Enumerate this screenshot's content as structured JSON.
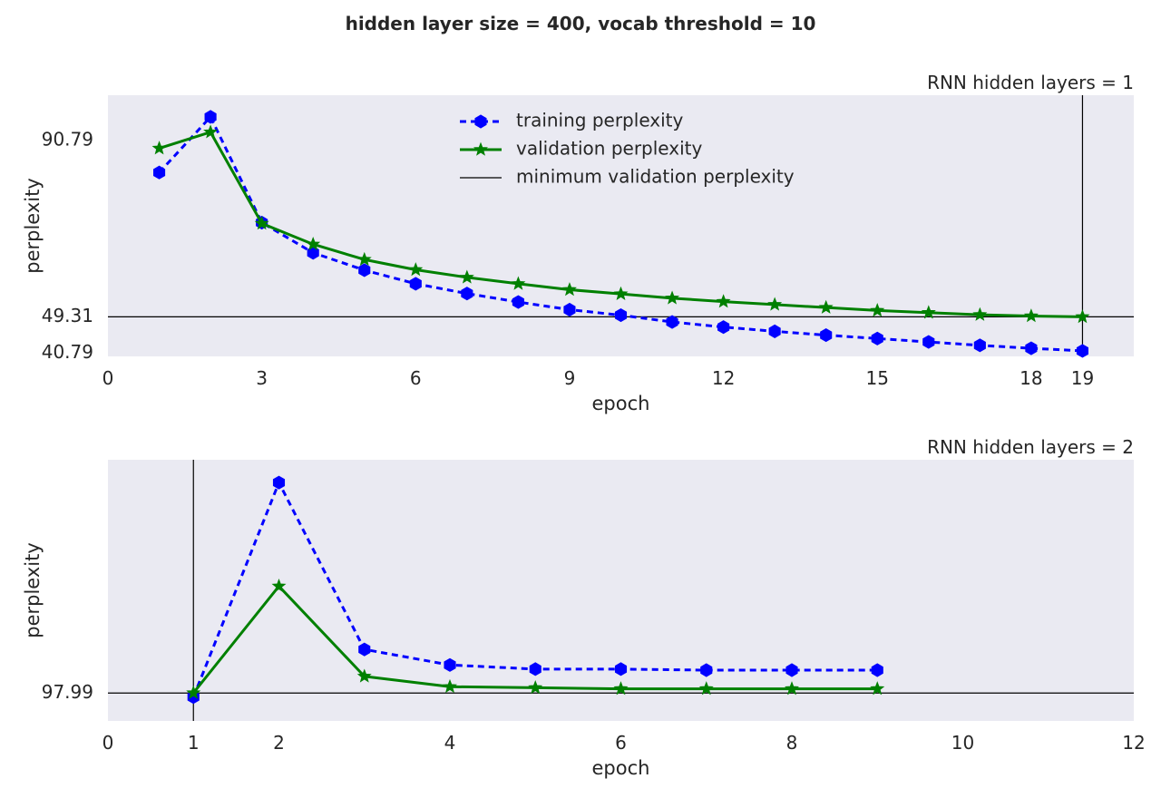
{
  "suptitle": "hidden layer size = 400, vocab threshold = 10",
  "colors": {
    "training": "#0000ff",
    "validation": "#008000",
    "minimum": "#000000",
    "axes_bg": "#eaeaf2"
  },
  "legend": {
    "placement": "upper center",
    "entries": [
      "training perplexity",
      "validation perplexity",
      "minimum validation perplexity"
    ]
  },
  "chart_data": [
    {
      "type": "line",
      "title": "RNN hidden layers = 1",
      "xlabel": "epoch",
      "ylabel": "perplexity",
      "xlim": [
        0,
        20
      ],
      "ylim": [
        40,
        101.5
      ],
      "xticks": [
        0,
        3,
        6,
        9,
        12,
        15,
        18,
        19
      ],
      "yticks": [
        40.79,
        49.31,
        90.79
      ],
      "grid": false,
      "legend": true,
      "minimum": {
        "epoch": 19,
        "value": 49.31
      },
      "x": [
        1,
        2,
        3,
        4,
        5,
        6,
        7,
        8,
        9,
        10,
        11,
        12,
        13,
        14,
        15,
        16,
        17,
        18,
        19
      ],
      "series": [
        {
          "name": "training perplexity",
          "style": "dashed-hexagon",
          "values": [
            83.3,
            96.4,
            71.5,
            64.4,
            60.3,
            57.1,
            54.8,
            52.8,
            51.0,
            49.7,
            48.1,
            46.9,
            45.9,
            45.0,
            44.2,
            43.4,
            42.6,
            41.9,
            41.3
          ]
        },
        {
          "name": "validation perplexity",
          "style": "solid-star",
          "values": [
            89.0,
            92.8,
            71.3,
            66.4,
            62.8,
            60.4,
            58.6,
            57.1,
            55.7,
            54.7,
            53.7,
            52.9,
            52.2,
            51.5,
            50.8,
            50.3,
            49.8,
            49.5,
            49.31
          ]
        }
      ]
    },
    {
      "type": "line",
      "title": "RNN hidden layers = 2",
      "xlabel": "epoch",
      "ylabel": "perplexity",
      "xlim": [
        0,
        12
      ],
      "ylim": [
        95.3,
        120.5
      ],
      "xticks": [
        0,
        1,
        2,
        4,
        6,
        8,
        10,
        12
      ],
      "yticks": [
        97.99
      ],
      "grid": false,
      "legend": false,
      "minimum": {
        "epoch": 1,
        "value": 97.99
      },
      "x": [
        1,
        2,
        3,
        4,
        5,
        6,
        7,
        8,
        9
      ],
      "series": [
        {
          "name": "training perplexity",
          "style": "dashed-hexagon",
          "values": [
            97.6,
            118.3,
            102.2,
            100.7,
            100.3,
            100.3,
            100.2,
            100.2,
            100.2
          ]
        },
        {
          "name": "validation perplexity",
          "style": "solid-star",
          "values": [
            98.0,
            108.3,
            99.6,
            98.6,
            98.5,
            98.4,
            98.4,
            98.4,
            98.4
          ]
        }
      ]
    }
  ]
}
